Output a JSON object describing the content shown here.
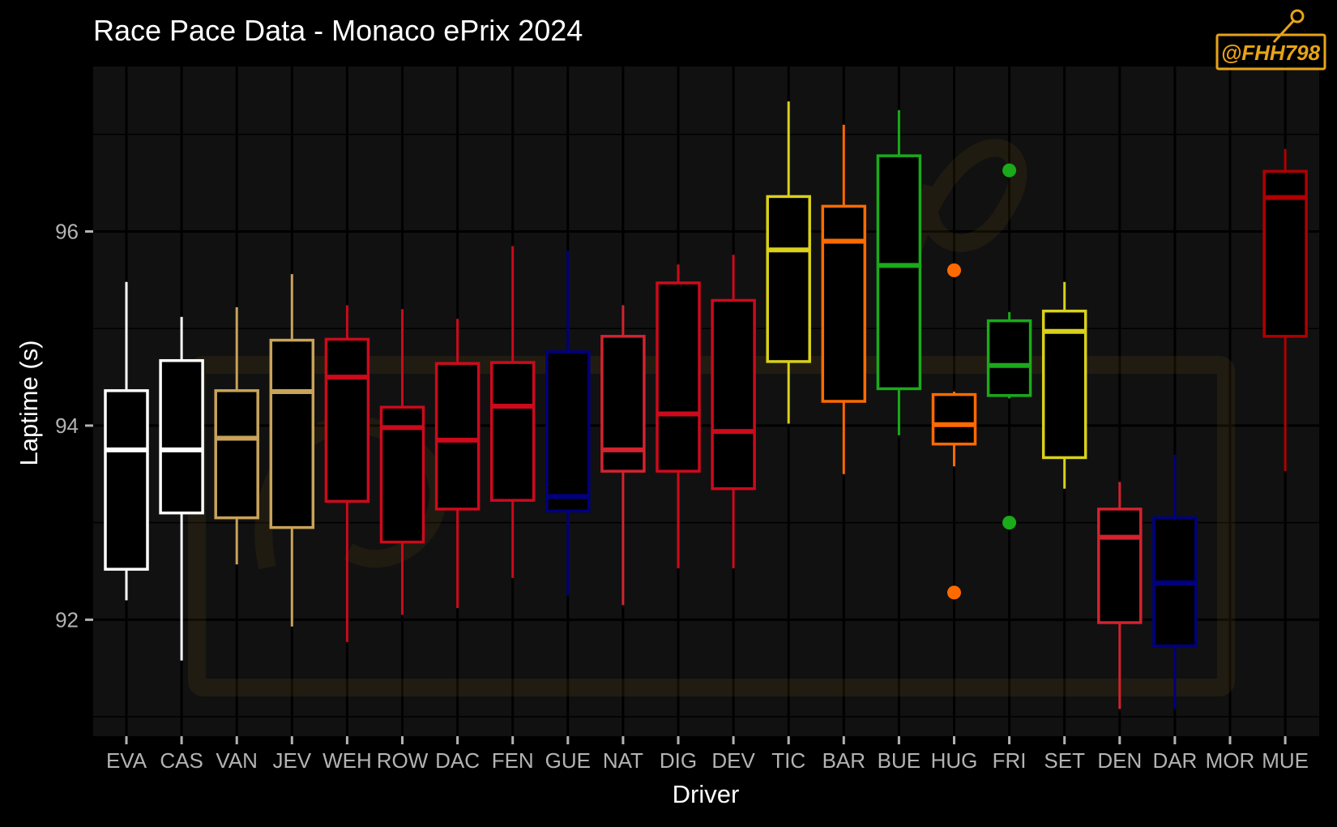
{
  "chart_data": {
    "type": "boxplot",
    "title": "Race Pace Data - Monaco ePrix 2024",
    "xlabel": "Driver",
    "ylabel": "Laptime (s)",
    "ylim": [
      90.8,
      97.7
    ],
    "yticks": [
      92,
      94,
      96
    ],
    "watermark": "@FHH798",
    "colors": {
      "background": "#000000",
      "panel": "#111111",
      "grid": "#000000",
      "watermark": "#e8a317"
    },
    "categories": [
      "EVA",
      "CAS",
      "VAN",
      "JEV",
      "WEH",
      "ROW",
      "DAC",
      "FEN",
      "GUE",
      "NAT",
      "DIG",
      "DEV",
      "TIC",
      "BAR",
      "BUE",
      "HUG",
      "FRI",
      "SET",
      "DEN",
      "DAR",
      "MOR",
      "MUE"
    ],
    "boxes": [
      {
        "driver": "EVA",
        "color": "#ffffff",
        "min": 92.2,
        "q1": 92.52,
        "median": 93.75,
        "q3": 94.36,
        "max": 95.48,
        "outliers": []
      },
      {
        "driver": "CAS",
        "color": "#ffffff",
        "min": 91.58,
        "q1": 93.1,
        "median": 93.75,
        "q3": 94.67,
        "max": 95.12,
        "outliers": []
      },
      {
        "driver": "VAN",
        "color": "#c9a35a",
        "min": 92.57,
        "q1": 93.05,
        "median": 93.87,
        "q3": 94.36,
        "max": 95.22,
        "outliers": []
      },
      {
        "driver": "JEV",
        "color": "#c9a35a",
        "min": 91.93,
        "q1": 92.95,
        "median": 94.35,
        "q3": 94.88,
        "max": 95.56,
        "outliers": []
      },
      {
        "driver": "WEH",
        "color": "#cc0a1c",
        "min": 91.77,
        "q1": 93.22,
        "median": 94.5,
        "q3": 94.89,
        "max": 95.24,
        "outliers": []
      },
      {
        "driver": "ROW",
        "color": "#cc0a1c",
        "min": 92.05,
        "q1": 92.8,
        "median": 93.98,
        "q3": 94.19,
        "max": 95.2,
        "outliers": []
      },
      {
        "driver": "DAC",
        "color": "#cc0a1c",
        "min": 92.12,
        "q1": 93.14,
        "median": 93.85,
        "q3": 94.64,
        "max": 95.1,
        "outliers": []
      },
      {
        "driver": "FEN",
        "color": "#cc0a1c",
        "min": 92.43,
        "q1": 93.23,
        "median": 94.2,
        "q3": 94.65,
        "max": 95.85,
        "outliers": []
      },
      {
        "driver": "GUE",
        "color": "#000080",
        "min": 92.25,
        "q1": 93.12,
        "median": 93.27,
        "q3": 94.76,
        "max": 95.8,
        "outliers": []
      },
      {
        "driver": "NAT",
        "color": "#d2232f",
        "min": 92.15,
        "q1": 93.53,
        "median": 93.75,
        "q3": 94.92,
        "max": 95.24,
        "outliers": []
      },
      {
        "driver": "DIG",
        "color": "#cc0a1c",
        "min": 92.53,
        "q1": 93.53,
        "median": 94.12,
        "q3": 95.47,
        "max": 95.66,
        "outliers": []
      },
      {
        "driver": "DEV",
        "color": "#cc0a1c",
        "min": 92.53,
        "q1": 93.35,
        "median": 93.94,
        "q3": 95.29,
        "max": 95.76,
        "outliers": []
      },
      {
        "driver": "TIC",
        "color": "#d9d11a",
        "min": 94.02,
        "q1": 94.66,
        "median": 95.81,
        "q3": 96.36,
        "max": 97.34,
        "outliers": []
      },
      {
        "driver": "BAR",
        "color": "#ff6a00",
        "min": 93.5,
        "q1": 94.25,
        "median": 95.9,
        "q3": 96.26,
        "max": 97.1,
        "outliers": []
      },
      {
        "driver": "BUE",
        "color": "#1aaa1a",
        "min": 93.9,
        "q1": 94.38,
        "median": 95.65,
        "q3": 96.78,
        "max": 97.25,
        "outliers": []
      },
      {
        "driver": "HUG",
        "color": "#ff6a00",
        "min": 93.58,
        "q1": 93.81,
        "median": 94.01,
        "q3": 94.32,
        "max": 94.35,
        "outliers": [
          95.6,
          92.28
        ]
      },
      {
        "driver": "FRI",
        "color": "#1aaa1a",
        "min": 94.28,
        "q1": 94.31,
        "median": 94.62,
        "q3": 95.08,
        "max": 95.17,
        "outliers": [
          96.63,
          93.0
        ]
      },
      {
        "driver": "SET",
        "color": "#d9d11a",
        "min": 93.35,
        "q1": 93.67,
        "median": 94.97,
        "q3": 95.18,
        "max": 95.48,
        "outliers": []
      },
      {
        "driver": "DEN",
        "color": "#d2232f",
        "min": 91.08,
        "q1": 91.97,
        "median": 92.85,
        "q3": 93.14,
        "max": 93.42,
        "outliers": []
      },
      {
        "driver": "DAR",
        "color": "#000080",
        "min": 91.08,
        "q1": 91.73,
        "median": 92.38,
        "q3": 93.05,
        "max": 93.7,
        "outliers": []
      },
      {
        "driver": "MOR",
        "color": "#cc0a1c",
        "min": null,
        "q1": null,
        "median": null,
        "q3": null,
        "max": null,
        "outliers": []
      },
      {
        "driver": "MUE",
        "color": "#b00000",
        "min": 93.53,
        "q1": 94.92,
        "median": 96.35,
        "q3": 96.62,
        "max": 96.85,
        "outliers": []
      }
    ]
  }
}
